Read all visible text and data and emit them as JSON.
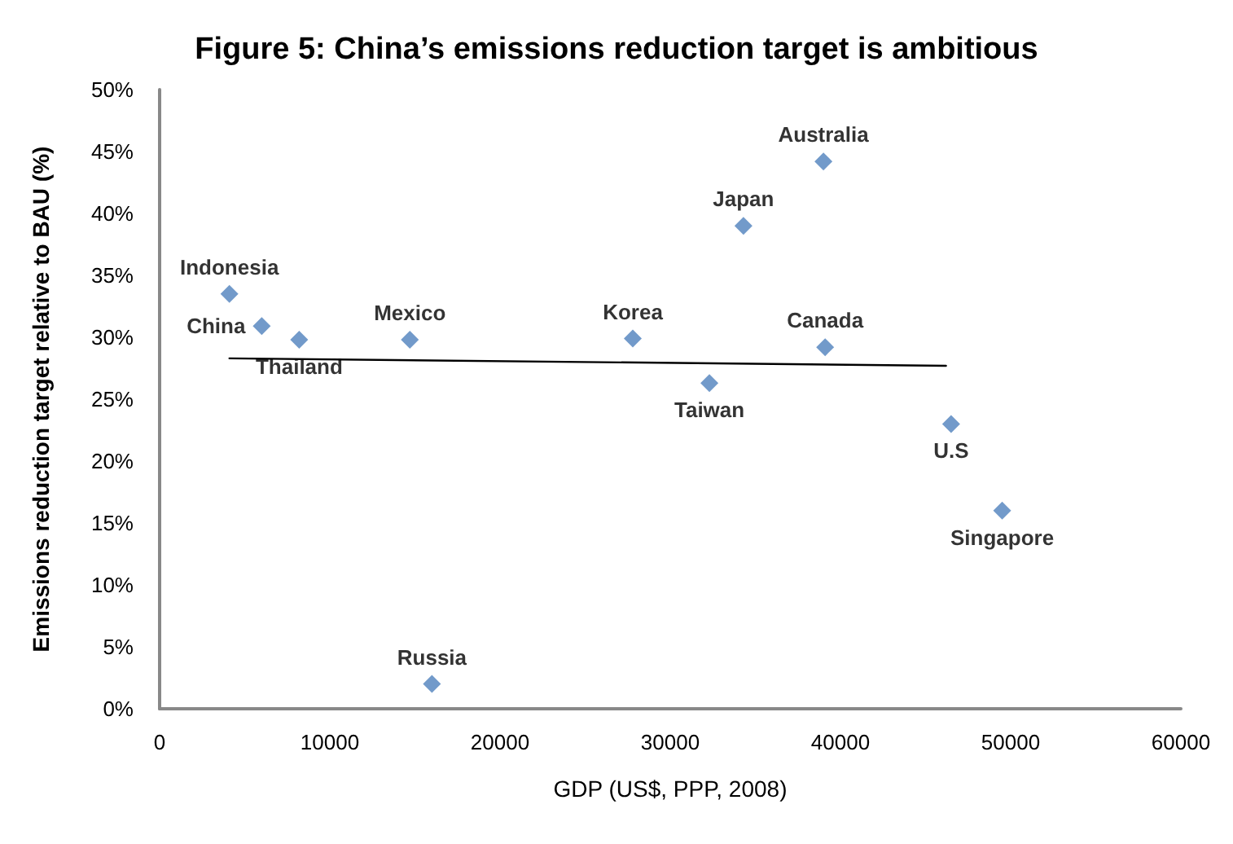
{
  "chart_data": {
    "type": "scatter",
    "title": "Figure 5: China’s emissions reduction target is ambitious",
    "xlabel": "GDP (US$, PPP, 2008)",
    "ylabel": "Emissions reduction target relative to BAU (%)",
    "xlim": [
      0,
      60000
    ],
    "xticks": [
      0,
      10000,
      20000,
      30000,
      40000,
      50000,
      60000
    ],
    "ylim": [
      0,
      50
    ],
    "yticks": [
      {
        "value": 0,
        "label": "0%"
      },
      {
        "value": 5,
        "label": "5%"
      },
      {
        "value": 10,
        "label": "10%"
      },
      {
        "value": 15,
        "label": "15%"
      },
      {
        "value": 20,
        "label": "20%"
      },
      {
        "value": 25,
        "label": "25%"
      },
      {
        "value": 30,
        "label": "30%"
      },
      {
        "value": 35,
        "label": "35%"
      },
      {
        "value": 40,
        "label": "40%"
      },
      {
        "value": 45,
        "label": "45%"
      },
      {
        "value": 50,
        "label": "50%"
      }
    ],
    "grid": false,
    "marker": "diamond",
    "series": [
      {
        "type": "scatter",
        "color": "#4f81bd",
        "x": [
          4100,
          6000,
          8200,
          14700,
          16000,
          27800,
          32300,
          34300,
          39000,
          39100,
          46500,
          49500
        ],
        "values": [
          33.5,
          30.9,
          29.8,
          29.8,
          2.0,
          29.9,
          26.3,
          39.0,
          44.2,
          29.2,
          23.0,
          16.0
        ]
      },
      {
        "type": "line",
        "color": "#000000",
        "x": [
          4100,
          46200
        ],
        "values": [
          28.3,
          27.7
        ],
        "marker": "none",
        "line_style": "solid"
      }
    ],
    "annotations": [
      {
        "text": "Indonesia",
        "x": 4100,
        "y": 33.5
      },
      {
        "text": "China",
        "x": 6000,
        "y": 30.9
      },
      {
        "text": "Thailand",
        "x": 8200,
        "y": 29.8
      },
      {
        "text": "Mexico",
        "x": 14700,
        "y": 29.8
      },
      {
        "text": "Russia",
        "x": 16000,
        "y": 2.0
      },
      {
        "text": "Korea",
        "x": 27800,
        "y": 29.9
      },
      {
        "text": "Taiwan",
        "x": 32300,
        "y": 26.3
      },
      {
        "text": "Japan",
        "x": 34300,
        "y": 39.0
      },
      {
        "text": "Australia",
        "x": 39000,
        "y": 44.2
      },
      {
        "text": "Canada",
        "x": 39100,
        "y": 29.2
      },
      {
        "text": "U.S",
        "x": 46500,
        "y": 23.0
      },
      {
        "text": "Singapore",
        "x": 49500,
        "y": 16.0
      }
    ]
  }
}
